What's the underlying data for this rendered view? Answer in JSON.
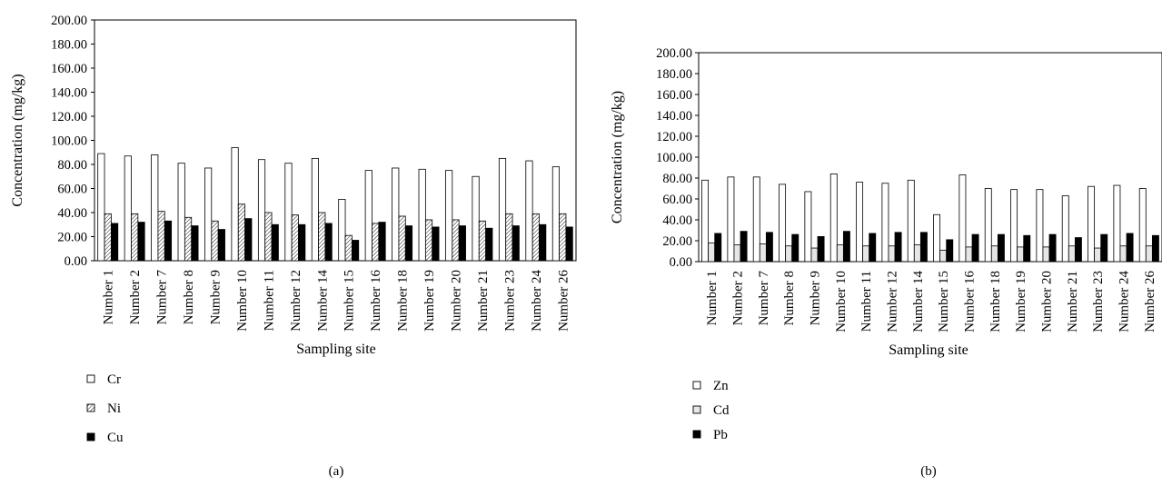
{
  "chart_data": [
    {
      "type": "bar",
      "panel_label": "(a)",
      "xlabel": "Sampling site",
      "ylabel": "Concentration (mg/kg)",
      "ylim": [
        0,
        200
      ],
      "yticks": [
        "0.00",
        "20.00",
        "40.00",
        "60.00",
        "80.00",
        "100.00",
        "120.00",
        "140.00",
        "160.00",
        "180.00",
        "200.00"
      ],
      "categories": [
        "Number 1",
        "Number 2",
        "Number 7",
        "Number 8",
        "Number 9",
        "Number 10",
        "Number 11",
        "Number 12",
        "Number 14",
        "Number 15",
        "Number 16",
        "Number 18",
        "Number 19",
        "Number 20",
        "Number 21",
        "Number 23",
        "Number 24",
        "Number 26"
      ],
      "grid": false,
      "legend_position": "bottom-left",
      "series": [
        {
          "name": "Cr",
          "pattern": "white",
          "values": [
            89,
            87,
            88,
            81,
            77,
            94,
            84,
            81,
            85,
            51,
            75,
            77,
            76,
            75,
            70,
            85,
            83,
            78
          ]
        },
        {
          "name": "Ni",
          "pattern": "hatched",
          "values": [
            39,
            39,
            41,
            36,
            33,
            47,
            40,
            38,
            40,
            21,
            31,
            37,
            34,
            34,
            33,
            39,
            39,
            39
          ]
        },
        {
          "name": "Cu",
          "pattern": "black",
          "values": [
            31,
            32,
            33,
            29,
            26,
            35,
            30,
            30,
            31,
            17,
            32,
            29,
            28,
            29,
            27,
            29,
            30,
            28
          ]
        }
      ]
    },
    {
      "type": "bar",
      "panel_label": "(b)",
      "xlabel": "Sampling site",
      "ylabel": "Concentration (mg/kg)",
      "ylim": [
        0,
        200
      ],
      "yticks": [
        "0.00",
        "20.00",
        "40.00",
        "60.00",
        "80.00",
        "100.00",
        "120.00",
        "140.00",
        "160.00",
        "180.00",
        "200.00"
      ],
      "categories": [
        "Number 1",
        "Number 2",
        "Number 7",
        "Number 8",
        "Number 9",
        "Number 10",
        "Number 11",
        "Number 12",
        "Number 14",
        "Number 15",
        "Number 16",
        "Number 18",
        "Number 19",
        "Number 20",
        "Number 21",
        "Number 23",
        "Number 24",
        "Number 26"
      ],
      "grid": false,
      "legend_position": "bottom-left",
      "series": [
        {
          "name": "Zn",
          "pattern": "white",
          "values": [
            78,
            81,
            81,
            74,
            67,
            84,
            76,
            75,
            78,
            45,
            83,
            70,
            69,
            69,
            63,
            72,
            73,
            70
          ]
        },
        {
          "name": "Cd",
          "pattern": "light",
          "values": [
            18,
            16,
            17,
            15,
            13,
            16,
            15,
            15,
            16,
            11,
            14,
            15,
            14,
            14,
            15,
            13,
            15,
            15
          ]
        },
        {
          "name": "Pb",
          "pattern": "black",
          "values": [
            27,
            29,
            28,
            26,
            24,
            29,
            27,
            28,
            28,
            21,
            26,
            26,
            25,
            26,
            23,
            26,
            27,
            25
          ]
        }
      ]
    }
  ]
}
